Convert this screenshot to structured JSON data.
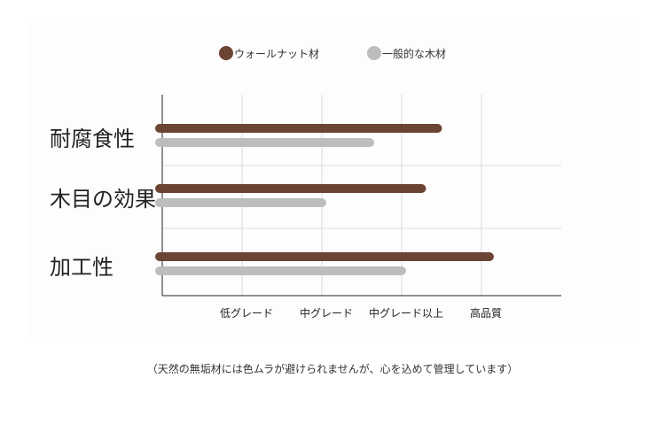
{
  "chart_data": {
    "type": "bar",
    "orientation": "horizontal",
    "categories": [
      "耐腐食性",
      "木目の効果",
      "加工性"
    ],
    "x_ticks": [
      "低グレード",
      "中グレード",
      "中グレード以上",
      "高品質"
    ],
    "xlim": [
      0,
      5
    ],
    "series": [
      {
        "name": "ウォールナット材",
        "color": "#6b4434",
        "values": [
          3.45,
          3.25,
          4.1
        ]
      },
      {
        "name": "一般的な木材",
        "color": "#bdbdbd",
        "values": [
          2.6,
          2.0,
          3.0
        ]
      }
    ],
    "legend_position": "top",
    "grid": true
  },
  "footnote": "（天然の無垢材には色ムラが避けられませんが、心を込めて管理しています）"
}
